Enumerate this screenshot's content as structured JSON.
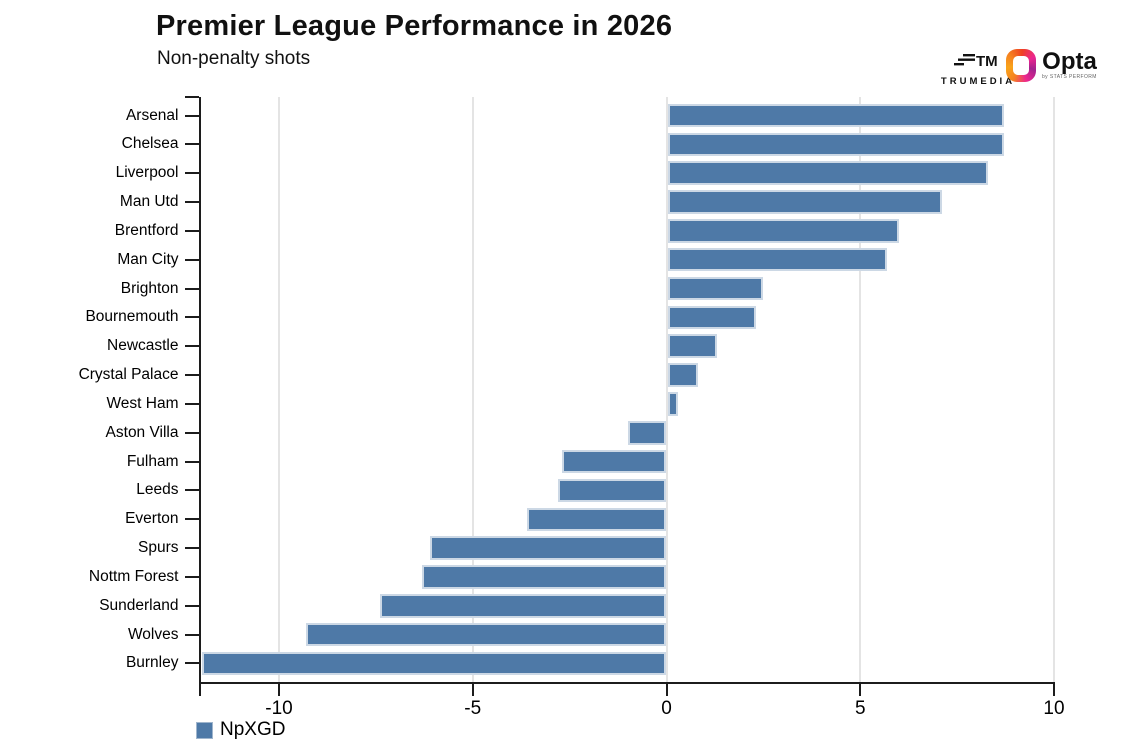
{
  "header": {
    "title": "Premier League Performance in 2026",
    "subtitle": "Non-penalty shots",
    "logos": {
      "trumedia_word": "TRUMEDIA",
      "trumedia_mark": "TM",
      "opta_word": "Opta",
      "opta_sub": "by STATS PERFORM"
    }
  },
  "legend": {
    "label": "NpXGD",
    "color": "#4e79a7"
  },
  "chart_data": {
    "type": "bar",
    "orientation": "horizontal",
    "title": "Premier League Performance in 2026",
    "subtitle": "Non-penalty shots",
    "xlabel": "",
    "ylabel": "",
    "series_name": "NpXGD",
    "categories": [
      "Arsenal",
      "Chelsea",
      "Liverpool",
      "Man Utd",
      "Brentford",
      "Man City",
      "Brighton",
      "Bournemouth",
      "Newcastle",
      "Crystal Palace",
      "West Ham",
      "Aston Villa",
      "Fulham",
      "Leeds",
      "Everton",
      "Spurs",
      "Nottm Forest",
      "Sunderland",
      "Wolves",
      "Burnley"
    ],
    "values": [
      8.7,
      8.7,
      8.3,
      7.1,
      6.0,
      5.7,
      2.5,
      2.3,
      1.3,
      0.8,
      0.3,
      -1.0,
      -2.7,
      -2.8,
      -3.6,
      -6.1,
      -6.3,
      -7.4,
      -9.3,
      -12.0
    ],
    "x_ticks": [
      -10,
      -5,
      0,
      5,
      10
    ],
    "xlim": [
      -12.1,
      10
    ],
    "grid": true,
    "legend_position": "bottom-left",
    "bar_color": "#4e79a7",
    "gridline_color": "#e4e4e4",
    "axis_color": "#1c1c1c"
  }
}
